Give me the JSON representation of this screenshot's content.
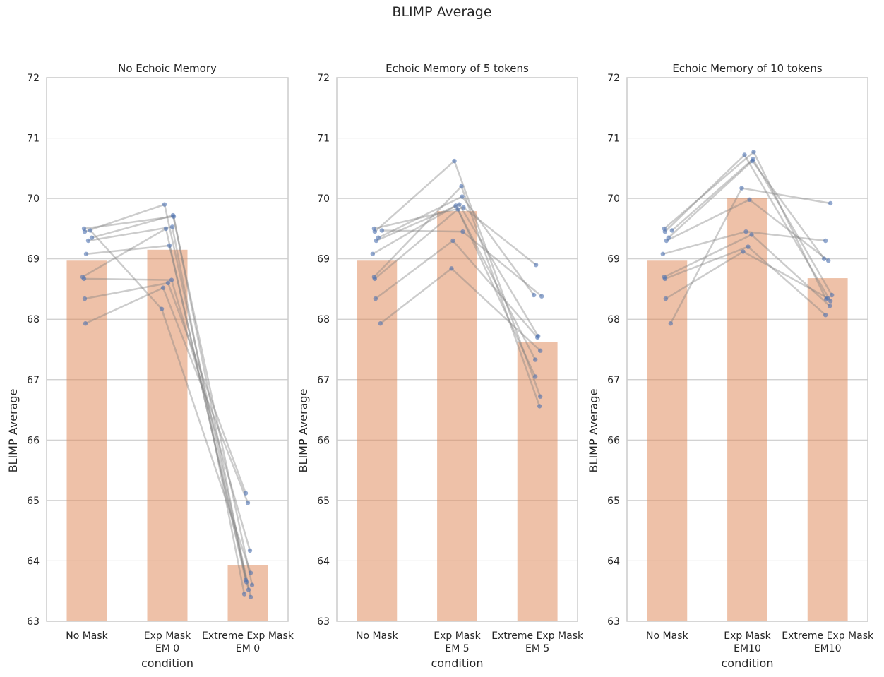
{
  "suptitle": "BLIMP Average",
  "colors": {
    "bar": "#dd8452",
    "point": "#4c72b0",
    "line": "#808080",
    "grid": "#cccccc"
  },
  "chart_data": [
    {
      "type": "bar",
      "title": "No Echoic Memory",
      "xlabel": "condition",
      "ylabel": "BLIMP Average",
      "ylim": [
        63,
        72
      ],
      "yticks": [
        63,
        64,
        65,
        66,
        67,
        68,
        69,
        70,
        71,
        72
      ],
      "grid": true,
      "categories": [
        [
          "No Mask"
        ],
        [
          "Exp Mask",
          "EM 0"
        ],
        [
          "Extreme Exp Mask",
          "EM 0"
        ]
      ],
      "values": [
        68.97,
        69.15,
        63.93
      ],
      "runs": [
        [
          69.5,
          69.7,
          63.65
        ],
        [
          69.45,
          69.9,
          63.4
        ],
        [
          69.35,
          69.72,
          63.6
        ],
        [
          69.3,
          69.53,
          63.45
        ],
        [
          69.08,
          69.22,
          63.52
        ],
        [
          68.7,
          69.5,
          63.68
        ],
        [
          68.67,
          68.65,
          64.17
        ],
        [
          68.34,
          68.6,
          65.12
        ],
        [
          67.93,
          68.52,
          64.96
        ],
        [
          69.47,
          68.17,
          63.8
        ]
      ]
    },
    {
      "type": "bar",
      "title": "Echoic Memory of 5 tokens",
      "xlabel": "condition",
      "ylabel": "BLIMP Average",
      "ylim": [
        63,
        72
      ],
      "yticks": [
        63,
        64,
        65,
        66,
        67,
        68,
        69,
        70,
        71,
        72
      ],
      "grid": true,
      "categories": [
        [
          "No Mask"
        ],
        [
          "Exp Mask",
          "EM 5"
        ],
        [
          "Extreme Exp Mask",
          "EM 5"
        ]
      ],
      "values": [
        68.97,
        69.79,
        67.62
      ],
      "runs": [
        [
          69.5,
          69.85,
          68.9
        ],
        [
          69.45,
          70.62,
          66.72
        ],
        [
          69.47,
          69.45,
          68.38
        ],
        [
          69.35,
          70.03,
          68.4
        ],
        [
          69.3,
          69.9,
          67.72
        ],
        [
          69.08,
          69.88,
          67.33
        ],
        [
          68.7,
          70.2,
          66.56
        ],
        [
          68.67,
          69.82,
          67.05
        ],
        [
          68.34,
          69.3,
          67.7
        ],
        [
          67.93,
          68.84,
          67.48
        ]
      ]
    },
    {
      "type": "bar",
      "title": "Echoic Memory of 10 tokens",
      "xlabel": "condition",
      "ylabel": "",
      "ylim": [
        63,
        72
      ],
      "yticks": [
        63,
        64,
        65,
        66,
        67,
        68,
        69,
        70,
        71,
        72
      ],
      "grid": true,
      "categories": [
        [
          "No Mask"
        ],
        [
          "Exp Mask",
          "EM10"
        ],
        [
          "Extreme Exp Mask",
          "EM10"
        ]
      ],
      "values": [
        68.97,
        70.01,
        68.68
      ],
      "runs": [
        [
          69.5,
          70.77,
          68.33
        ],
        [
          69.45,
          70.72,
          68.3
        ],
        [
          69.47,
          70.65,
          68.4
        ],
        [
          69.35,
          70.62,
          69.0
        ],
        [
          69.3,
          69.98,
          68.97
        ],
        [
          69.08,
          69.45,
          69.3
        ],
        [
          68.7,
          69.4,
          68.22
        ],
        [
          68.67,
          69.2,
          68.07
        ],
        [
          68.34,
          69.12,
          68.35
        ],
        [
          67.93,
          70.17,
          69.92
        ]
      ]
    }
  ]
}
